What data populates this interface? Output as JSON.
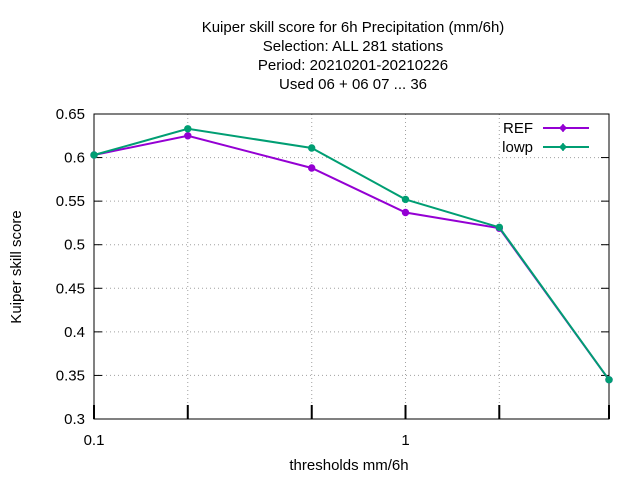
{
  "chart_data": {
    "type": "line",
    "title_lines": [
      "Kuiper skill score  for 6h Precipitation (mm/6h)",
      "Selection: ALL     281 stations",
      "Period: 20210201-20210226",
      "Used  06  + 06 07 ... 36"
    ],
    "xlabel": "thresholds mm/6h",
    "ylabel": "Kuiper skill score",
    "x_scale": "log",
    "xlim": [
      0.1,
      4.5
    ],
    "ylim": [
      0.3,
      0.65
    ],
    "x_tick_labels": [
      {
        "value": 0.1,
        "label": "0.1"
      },
      {
        "value": 1,
        "label": "1"
      }
    ],
    "x_minor_ticks": [
      0.2,
      0.5,
      2,
      4.5
    ],
    "y_ticks": [
      {
        "value": 0.3,
        "label": "0.3"
      },
      {
        "value": 0.35,
        "label": "0.35"
      },
      {
        "value": 0.4,
        "label": "0.4"
      },
      {
        "value": 0.45,
        "label": "0.45"
      },
      {
        "value": 0.5,
        "label": "0.5"
      },
      {
        "value": 0.55,
        "label": "0.55"
      },
      {
        "value": 0.6,
        "label": "0.6"
      },
      {
        "value": 0.65,
        "label": "0.65"
      }
    ],
    "grid": true,
    "legend_position": "top-right",
    "series": [
      {
        "name": "REF",
        "color": "#9400d3",
        "x": [
          0.1,
          0.2,
          0.5,
          1,
          2,
          4.5
        ],
        "y": [
          0.603,
          0.625,
          0.588,
          0.537,
          0.519,
          0.345
        ]
      },
      {
        "name": "lowp",
        "color": "#009e73",
        "x": [
          0.1,
          0.2,
          0.5,
          1,
          2,
          4.5
        ],
        "y": [
          0.603,
          0.633,
          0.611,
          0.552,
          0.52,
          0.345
        ]
      }
    ]
  }
}
